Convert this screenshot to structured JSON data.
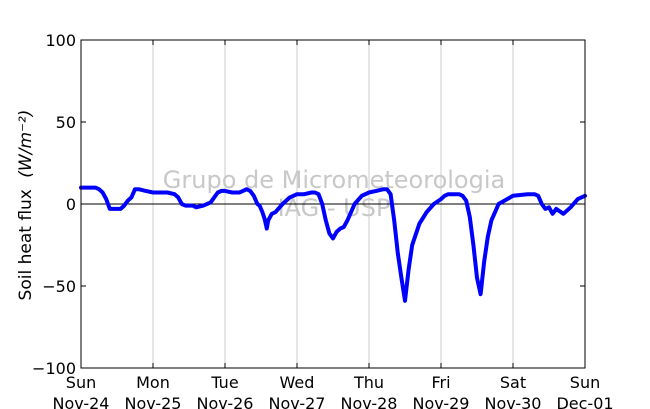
{
  "chart_data": {
    "type": "line",
    "title": "",
    "ylabel": "Soil heat flux",
    "ylabel_unit": "(W/m⁻²)",
    "ylim": [
      -100,
      100
    ],
    "yticks": [
      -100,
      -50,
      0,
      50,
      100
    ],
    "xlim": [
      0,
      7
    ],
    "xticks": [
      {
        "value": 0,
        "day": "Sun",
        "date": "Nov-24"
      },
      {
        "value": 1,
        "day": "Mon",
        "date": "Nov-25"
      },
      {
        "value": 2,
        "day": "Tue",
        "date": "Nov-26"
      },
      {
        "value": 3,
        "day": "Wed",
        "date": "Nov-27"
      },
      {
        "value": 4,
        "day": "Thu",
        "date": "Nov-28"
      },
      {
        "value": 5,
        "day": "Fri",
        "date": "Nov-29"
      },
      {
        "value": 6,
        "day": "Sat",
        "date": "Nov-30"
      },
      {
        "value": 7,
        "day": "Sun",
        "date": "Dec-01"
      }
    ],
    "grid": "vertical",
    "zero_line": true,
    "watermark": [
      "Grupo de Micrometeorologia",
      "IAG - USP"
    ],
    "colors": {
      "series": "#0000ff",
      "grid": "#cccccc",
      "axis": "#000000",
      "watermark": "#c8c8c8"
    },
    "series": [
      {
        "x": [
          0,
          0.2,
          0.25,
          0.3,
          0.35,
          0.4,
          0.45,
          0.5,
          0.55,
          0.6,
          0.65,
          0.7,
          0.75,
          0.8,
          0.9,
          1.0,
          1.2,
          1.3,
          1.35,
          1.4,
          1.45,
          1.5,
          1.55,
          1.6,
          1.7,
          1.8,
          1.85,
          1.9,
          1.95,
          2.0,
          2.1,
          2.2,
          2.25,
          2.3,
          2.35,
          2.4,
          2.45,
          2.48,
          2.5,
          2.52,
          2.55,
          2.58,
          2.6,
          2.65,
          2.7,
          2.8,
          2.9,
          3.0,
          3.1,
          3.2,
          3.25,
          3.3,
          3.35,
          3.4,
          3.45,
          3.5,
          3.55,
          3.6,
          3.65,
          3.7,
          3.8,
          3.9,
          4.0,
          4.1,
          4.2,
          4.25,
          4.3,
          4.35,
          4.4,
          4.45,
          4.5,
          4.55,
          4.6,
          4.7,
          4.8,
          4.9,
          5.0,
          5.05,
          5.1,
          5.15,
          5.2,
          5.25,
          5.3,
          5.35,
          5.4,
          5.45,
          5.5,
          5.55,
          5.6,
          5.65,
          5.7,
          5.8,
          6.0,
          6.2,
          6.3,
          6.35,
          6.4,
          6.45,
          6.5,
          6.55,
          6.6,
          6.7,
          6.8,
          6.9,
          7.0
        ],
        "y": [
          10,
          10,
          9,
          7,
          3,
          -3,
          -3,
          -3,
          -3,
          -1,
          2,
          4,
          9,
          9,
          8,
          7,
          7,
          6,
          4,
          0,
          -1,
          -1,
          -1,
          -2,
          -1,
          1,
          4,
          7,
          8,
          8,
          7,
          7,
          8,
          9,
          8,
          5,
          0,
          -1,
          -3,
          -5,
          -9,
          -15,
          -10,
          -6,
          -5,
          0,
          4,
          6,
          6,
          7,
          7,
          6,
          0,
          -10,
          -18,
          -21,
          -17,
          -15,
          -14,
          -10,
          0,
          5,
          7,
          8,
          9,
          9,
          6,
          -10,
          -30,
          -45,
          -59,
          -40,
          -25,
          -12,
          -5,
          0,
          3,
          5,
          6,
          6,
          6,
          6,
          5,
          2,
          -8,
          -25,
          -45,
          -55,
          -35,
          -20,
          -10,
          0,
          5,
          6,
          6,
          5,
          0,
          -3,
          -2,
          -6,
          -3,
          -6,
          -2,
          3,
          5
        ]
      }
    ]
  }
}
